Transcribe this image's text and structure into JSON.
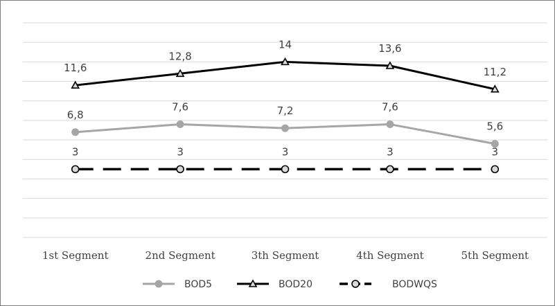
{
  "chart_data": {
    "type": "line",
    "title": "",
    "xlabel": "",
    "ylabel": "",
    "categories": [
      "1st Segment",
      "2nd Segment",
      "3th Segment",
      "4th Segment",
      "5th Segment"
    ],
    "ylim": [
      -4,
      18
    ],
    "y_gridline_step": 2,
    "grid": "horizontal",
    "legend_position": "bottom",
    "series": [
      {
        "name": "BOD5",
        "values": [
          6.8,
          7.6,
          7.2,
          7.6,
          5.6
        ],
        "labels": [
          "6,8",
          "7,6",
          "7,2",
          "7,6",
          "5,6"
        ],
        "color": "#a6a6a6",
        "marker": "circle",
        "line_style": "solid"
      },
      {
        "name": "BOD20",
        "values": [
          11.6,
          12.8,
          14,
          13.6,
          11.2
        ],
        "labels": [
          "11,6",
          "12,8",
          "14",
          "13,6",
          "11,2"
        ],
        "color": "#000000",
        "marker": "triangle",
        "line_style": "solid"
      },
      {
        "name": "BODWQS",
        "values": [
          3,
          3,
          3,
          3,
          3
        ],
        "labels": [
          "3",
          "3",
          "3",
          "3",
          "3"
        ],
        "color": "#000000",
        "marker": "circle-hollow",
        "line_style": "dashed"
      }
    ]
  }
}
